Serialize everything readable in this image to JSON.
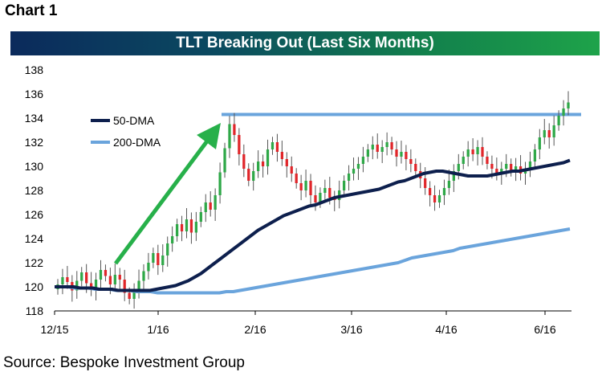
{
  "header": {
    "chart_label": "Chart 1"
  },
  "footer": {
    "source": "Source: Bespoke Investment Group"
  },
  "colors": {
    "up_candle": "#2fa848",
    "down_candle": "#e0262a",
    "dma50": "#0d1f4d",
    "dma200": "#6aa4dc",
    "resistance": "#6aa4dc",
    "arrow": "#27b04a"
  },
  "chart_data": {
    "type": "candlestick",
    "title": "TLT Breaking Out (Last Six Months)",
    "x_tick_labels": [
      "12/15",
      "1/16",
      "2/16",
      "3/16",
      "4/16",
      "6/16"
    ],
    "y_ticks": [
      118,
      120,
      122,
      124,
      126,
      128,
      130,
      132,
      134,
      136,
      138
    ],
    "ylim": [
      118,
      138
    ],
    "grid": false,
    "legend": [
      {
        "name": "50-DMA",
        "color": "#0d1f4d"
      },
      {
        "name": "200-DMA",
        "color": "#6aa4dc"
      }
    ],
    "resistance_level": 134.3,
    "closes": [
      120.2,
      120.8,
      120.4,
      119.7,
      120.5,
      121.2,
      120.3,
      119.8,
      120.6,
      121.4,
      120.9,
      120.2,
      121.0,
      120.6,
      119.5,
      119.0,
      119.6,
      120.5,
      121.3,
      122.0,
      122.8,
      121.8,
      122.6,
      123.6,
      124.2,
      125.2,
      124.6,
      125.6,
      124.5,
      125.4,
      126.2,
      127.0,
      126.4,
      127.6,
      129.5,
      131.5,
      133.5,
      132.6,
      131.0,
      129.8,
      128.8,
      129.6,
      130.4,
      130.0,
      131.4,
      132.0,
      131.2,
      130.6,
      130.0,
      129.4,
      128.6,
      128.0,
      128.8,
      127.6,
      127.0,
      127.8,
      128.2,
      127.4,
      127.2,
      128.0,
      128.8,
      129.4,
      129.8,
      130.2,
      130.8,
      131.4,
      131.8,
      131.2,
      131.6,
      132.0,
      131.4,
      130.8,
      131.2,
      130.6,
      130.2,
      129.6,
      129.0,
      128.2,
      127.6,
      127.0,
      127.6,
      128.2,
      128.8,
      129.6,
      130.2,
      130.8,
      131.4,
      131.0,
      131.6,
      130.8,
      130.2,
      129.8,
      129.4,
      129.8,
      130.2,
      129.6,
      130.0,
      129.4,
      129.8,
      130.4,
      131.4,
      132.4,
      133.0,
      132.4,
      133.4,
      134.2,
      134.8,
      135.3
    ],
    "dma50": [
      120.0,
      120.0,
      120.0,
      120.0,
      119.9,
      119.9,
      119.9,
      119.8,
      119.8,
      119.8,
      119.7,
      119.7,
      119.7,
      119.7,
      119.7,
      119.7,
      119.8,
      119.9,
      120.0,
      120.1,
      120.3,
      120.5,
      120.8,
      121.1,
      121.5,
      121.9,
      122.3,
      122.7,
      123.1,
      123.5,
      123.9,
      124.3,
      124.7,
      125.0,
      125.3,
      125.6,
      125.9,
      126.1,
      126.3,
      126.5,
      126.7,
      126.8,
      127.0,
      127.2,
      127.4,
      127.5,
      127.6,
      127.7,
      127.8,
      127.9,
      128.0,
      128.1,
      128.3,
      128.5,
      128.7,
      128.8,
      129.0,
      129.2,
      129.4,
      129.5,
      129.6,
      129.6,
      129.5,
      129.4,
      129.3,
      129.2,
      129.2,
      129.2,
      129.2,
      129.3,
      129.4,
      129.5,
      129.6,
      129.6,
      129.7,
      129.8,
      129.9,
      130.0,
      130.1,
      130.2,
      130.3,
      130.5
    ],
    "dma200": [
      120.0,
      120.0,
      120.0,
      119.9,
      119.9,
      119.9,
      119.8,
      119.8,
      119.8,
      119.7,
      119.7,
      119.7,
      119.6,
      119.6,
      119.6,
      119.5,
      119.5,
      119.5,
      119.5,
      119.5,
      119.5,
      119.5,
      119.5,
      119.5,
      119.5,
      119.6,
      119.6,
      119.7,
      119.8,
      119.9,
      120.0,
      120.1,
      120.2,
      120.3,
      120.4,
      120.5,
      120.6,
      120.7,
      120.8,
      120.9,
      121.0,
      121.1,
      121.2,
      121.3,
      121.4,
      121.5,
      121.6,
      121.7,
      121.8,
      121.9,
      122.0,
      122.2,
      122.4,
      122.5,
      122.6,
      122.7,
      122.8,
      122.9,
      123.0,
      123.2,
      123.3,
      123.4,
      123.5,
      123.6,
      123.7,
      123.8,
      123.9,
      124.0,
      124.1,
      124.2,
      124.3,
      124.4,
      124.5,
      124.6,
      124.7,
      124.8
    ]
  }
}
